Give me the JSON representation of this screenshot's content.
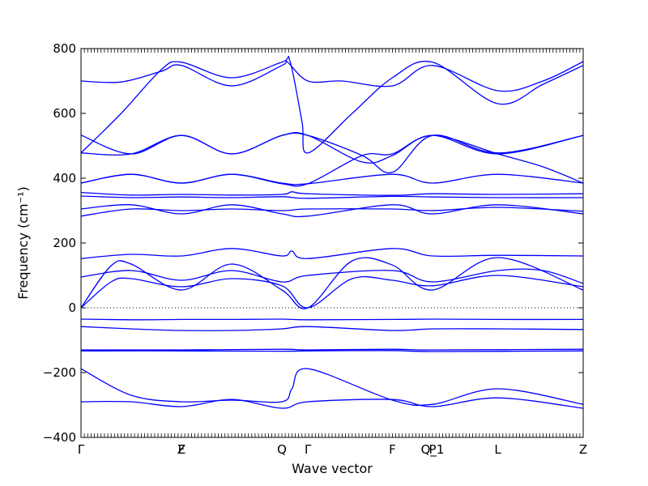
{
  "chart_data": {
    "type": "line",
    "xlabel": "Wave vector",
    "ylabel": "Frequency (cm⁻¹)",
    "ylim": [
      -400,
      800
    ],
    "yticks": [
      -400,
      -200,
      0,
      200,
      400,
      600,
      800
    ],
    "ytick_labels": [
      "−400",
      "−200",
      "0",
      "200",
      "400",
      "600",
      "800"
    ],
    "x_points": [
      {
        "label": "Γ",
        "x": 0.0
      },
      {
        "label": "F",
        "x": 1.0
      },
      {
        "label": "Z",
        "x": 1.0
      },
      {
        "label": "Q",
        "x": 2.0
      },
      {
        "label": "Γ",
        "x": 2.26
      },
      {
        "label": "F",
        "x": 3.1
      },
      {
        "label": "P",
        "x": 3.5
      },
      {
        "label": "Q_1",
        "x": 3.5
      },
      {
        "label": "L",
        "x": 4.15
      },
      {
        "label": "Z",
        "x": 5.0
      }
    ],
    "xlim": [
      0,
      5.0
    ],
    "zero_line": true,
    "line_color": "#0000ff",
    "series": [
      {
        "points": [
          [
            0,
            700
          ],
          [
            0.4,
            697
          ],
          [
            0.8,
            730
          ],
          [
            1.0,
            748
          ],
          [
            1.5,
            685
          ],
          [
            2.0,
            748
          ],
          [
            2.05,
            760
          ],
          [
            2.26,
            700
          ],
          [
            2.6,
            700
          ],
          [
            3.1,
            685
          ],
          [
            3.5,
            748
          ],
          [
            4.15,
            670
          ],
          [
            4.6,
            700
          ],
          [
            5.0,
            760
          ]
        ]
      },
      {
        "points": [
          [
            0,
            478
          ],
          [
            0.4,
            600
          ],
          [
            0.8,
            735
          ],
          [
            1.0,
            758
          ],
          [
            1.5,
            710
          ],
          [
            2.0,
            758
          ],
          [
            2.08,
            762
          ],
          [
            2.2,
            575
          ],
          [
            2.26,
            478
          ],
          [
            2.7,
            600
          ],
          [
            3.1,
            710
          ],
          [
            3.5,
            758
          ],
          [
            4.15,
            630
          ],
          [
            4.6,
            690
          ],
          [
            5.0,
            748
          ]
        ]
      },
      {
        "points": [
          [
            0,
            533
          ],
          [
            0.5,
            475
          ],
          [
            1.0,
            532
          ],
          [
            1.5,
            475
          ],
          [
            2.0,
            532
          ],
          [
            2.26,
            532
          ],
          [
            2.8,
            470
          ],
          [
            3.1,
            418
          ],
          [
            3.5,
            532
          ],
          [
            4.15,
            478
          ],
          [
            5.0,
            532
          ]
        ]
      },
      {
        "points": [
          [
            0,
            478
          ],
          [
            0.5,
            475
          ],
          [
            1.0,
            532
          ],
          [
            1.5,
            475
          ],
          [
            2.0,
            532
          ],
          [
            2.26,
            532
          ],
          [
            2.8,
            450
          ],
          [
            3.1,
            470
          ],
          [
            3.5,
            532
          ],
          [
            4.15,
            475
          ],
          [
            5.0,
            532
          ]
        ]
      },
      {
        "points": [
          [
            0,
            385
          ],
          [
            0.5,
            412
          ],
          [
            1.0,
            385
          ],
          [
            1.5,
            412
          ],
          [
            2.0,
            385
          ],
          [
            2.26,
            383
          ],
          [
            3.1,
            412
          ],
          [
            3.5,
            385
          ],
          [
            4.15,
            412
          ],
          [
            5.0,
            385
          ]
        ]
      },
      {
        "points": [
          [
            0,
            385
          ],
          [
            0.5,
            412
          ],
          [
            1.0,
            385
          ],
          [
            1.5,
            412
          ],
          [
            2.0,
            383
          ],
          [
            2.26,
            383
          ],
          [
            2.8,
            470
          ],
          [
            3.1,
            475
          ],
          [
            3.5,
            532
          ],
          [
            4.15,
            475
          ],
          [
            4.6,
            435
          ],
          [
            5.0,
            385
          ]
        ]
      },
      {
        "points": [
          [
            0,
            356
          ],
          [
            0.5,
            348
          ],
          [
            1.0,
            350
          ],
          [
            1.5,
            348
          ],
          [
            2.0,
            350
          ],
          [
            2.1,
            358
          ],
          [
            2.26,
            352
          ],
          [
            3.1,
            347
          ],
          [
            3.5,
            352
          ],
          [
            4.15,
            350
          ],
          [
            5.0,
            352
          ]
        ]
      },
      {
        "points": [
          [
            0,
            345
          ],
          [
            0.5,
            340
          ],
          [
            1.0,
            342
          ],
          [
            1.5,
            340
          ],
          [
            2.0,
            343
          ],
          [
            2.26,
            338
          ],
          [
            3.1,
            344
          ],
          [
            3.5,
            342
          ],
          [
            4.15,
            340
          ],
          [
            5.0,
            340
          ]
        ]
      },
      {
        "points": [
          [
            0,
            305
          ],
          [
            0.5,
            318
          ],
          [
            1.0,
            290
          ],
          [
            1.5,
            318
          ],
          [
            2.0,
            290
          ],
          [
            2.26,
            283
          ],
          [
            3.1,
            318
          ],
          [
            3.5,
            290
          ],
          [
            4.15,
            318
          ],
          [
            5.0,
            290
          ]
        ]
      },
      {
        "points": [
          [
            0,
            283
          ],
          [
            0.5,
            305
          ],
          [
            1.0,
            300
          ],
          [
            1.5,
            305
          ],
          [
            2.0,
            300
          ],
          [
            2.26,
            305
          ],
          [
            3.1,
            305
          ],
          [
            3.5,
            300
          ],
          [
            4.15,
            310
          ],
          [
            5.0,
            298
          ]
        ]
      },
      {
        "points": [
          [
            0,
            152
          ],
          [
            0.5,
            165
          ],
          [
            1.0,
            160
          ],
          [
            1.5,
            183
          ],
          [
            2.0,
            160
          ],
          [
            2.1,
            175
          ],
          [
            2.26,
            152
          ],
          [
            3.1,
            183
          ],
          [
            3.5,
            160
          ],
          [
            4.15,
            162
          ],
          [
            5.0,
            160
          ]
        ]
      },
      {
        "points": [
          [
            0,
            0
          ],
          [
            0.3,
            130
          ],
          [
            0.5,
            135
          ],
          [
            1.0,
            55
          ],
          [
            1.5,
            135
          ],
          [
            2.0,
            55
          ],
          [
            2.26,
            0
          ],
          [
            2.7,
            145
          ],
          [
            3.1,
            132
          ],
          [
            3.5,
            55
          ],
          [
            4.15,
            155
          ],
          [
            5.0,
            55
          ]
        ]
      },
      {
        "points": [
          [
            0,
            95
          ],
          [
            0.5,
            115
          ],
          [
            1.0,
            85
          ],
          [
            1.5,
            115
          ],
          [
            2.0,
            80
          ],
          [
            2.26,
            100
          ],
          [
            3.1,
            115
          ],
          [
            3.5,
            80
          ],
          [
            4.15,
            115
          ],
          [
            4.6,
            115
          ],
          [
            5.0,
            75
          ]
        ]
      },
      {
        "points": [
          [
            0,
            0
          ],
          [
            0.3,
            80
          ],
          [
            0.5,
            90
          ],
          [
            1.0,
            65
          ],
          [
            1.5,
            90
          ],
          [
            2.0,
            68
          ],
          [
            2.26,
            0
          ],
          [
            2.7,
            90
          ],
          [
            3.1,
            85
          ],
          [
            3.5,
            68
          ],
          [
            4.15,
            100
          ],
          [
            5.0,
            65
          ]
        ]
      },
      {
        "points": [
          [
            0,
            -35
          ],
          [
            0.5,
            -37
          ],
          [
            1.0,
            -36
          ],
          [
            1.5,
            -36
          ],
          [
            2.0,
            -35
          ],
          [
            2.26,
            -37
          ],
          [
            3.1,
            -36
          ],
          [
            3.5,
            -35
          ],
          [
            4.15,
            -36
          ],
          [
            5.0,
            -36
          ]
        ]
      },
      {
        "points": [
          [
            0,
            -58
          ],
          [
            0.5,
            -65
          ],
          [
            1.0,
            -70
          ],
          [
            1.5,
            -70
          ],
          [
            2.0,
            -65
          ],
          [
            2.26,
            -58
          ],
          [
            3.1,
            -70
          ],
          [
            3.5,
            -65
          ],
          [
            4.15,
            -65
          ],
          [
            5.0,
            -67
          ]
        ]
      },
      {
        "points": [
          [
            0,
            -130
          ],
          [
            1.0,
            -130
          ],
          [
            2.0,
            -128
          ],
          [
            2.26,
            -130
          ],
          [
            3.1,
            -128
          ],
          [
            3.5,
            -130
          ],
          [
            5.0,
            -128
          ]
        ]
      },
      {
        "points": [
          [
            0,
            -133
          ],
          [
            1.0,
            -133
          ],
          [
            2.0,
            -134
          ],
          [
            2.26,
            -133
          ],
          [
            3.1,
            -132
          ],
          [
            3.5,
            -135
          ],
          [
            5.0,
            -133
          ]
        ]
      },
      {
        "points": [
          [
            0,
            -188
          ],
          [
            0.5,
            -270
          ],
          [
            1.0,
            -290
          ],
          [
            1.5,
            -285
          ],
          [
            2.0,
            -290
          ],
          [
            2.1,
            -250
          ],
          [
            2.26,
            -188
          ],
          [
            3.1,
            -285
          ],
          [
            3.5,
            -298
          ],
          [
            4.15,
            -250
          ],
          [
            5.0,
            -298
          ]
        ]
      },
      {
        "points": [
          [
            0,
            -290
          ],
          [
            0.5,
            -290
          ],
          [
            1.0,
            -305
          ],
          [
            1.5,
            -283
          ],
          [
            2.0,
            -310
          ],
          [
            2.26,
            -290
          ],
          [
            3.1,
            -283
          ],
          [
            3.5,
            -305
          ],
          [
            4.15,
            -278
          ],
          [
            5.0,
            -310
          ]
        ]
      }
    ]
  }
}
